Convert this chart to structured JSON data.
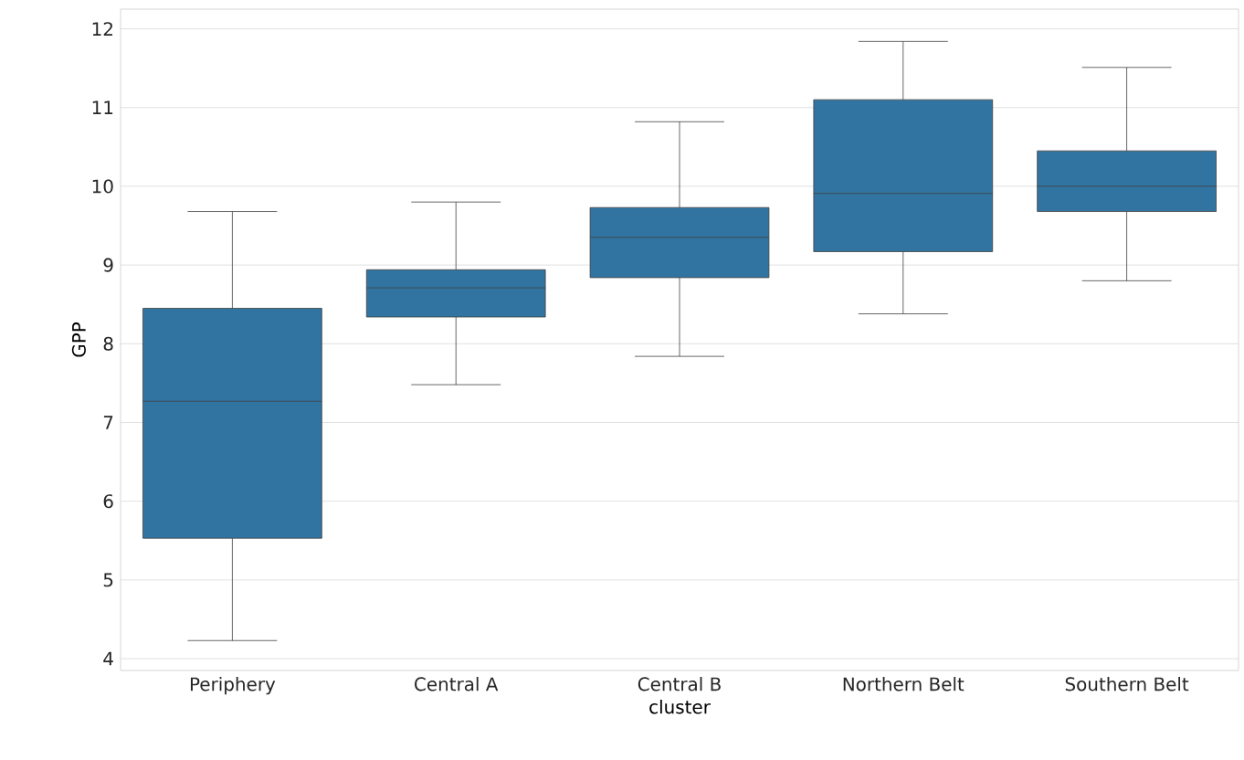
{
  "chart_data": {
    "type": "box",
    "xlabel": "cluster",
    "ylabel": "GPP",
    "categories": [
      "Periphery",
      "Central A",
      "Central B",
      "Northern Belt",
      "Southern Belt"
    ],
    "boxes": [
      {
        "low": 4.23,
        "q1": 5.53,
        "median": 7.27,
        "q3": 8.45,
        "high": 9.68
      },
      {
        "low": 7.48,
        "q1": 8.34,
        "median": 8.71,
        "q3": 8.94,
        "high": 9.8
      },
      {
        "low": 7.84,
        "q1": 8.84,
        "median": 9.35,
        "q3": 9.73,
        "high": 10.82
      },
      {
        "low": 8.38,
        "q1": 9.17,
        "median": 9.91,
        "q3": 11.1,
        "high": 11.84
      },
      {
        "low": 8.8,
        "q1": 9.68,
        "median": 10.0,
        "q3": 10.45,
        "high": 11.51
      }
    ],
    "color": "#3274a1",
    "ylim": [
      3.85,
      12.25
    ],
    "yticks": [
      4,
      5,
      6,
      7,
      8,
      9,
      10,
      11,
      12
    ],
    "grid": "y"
  }
}
